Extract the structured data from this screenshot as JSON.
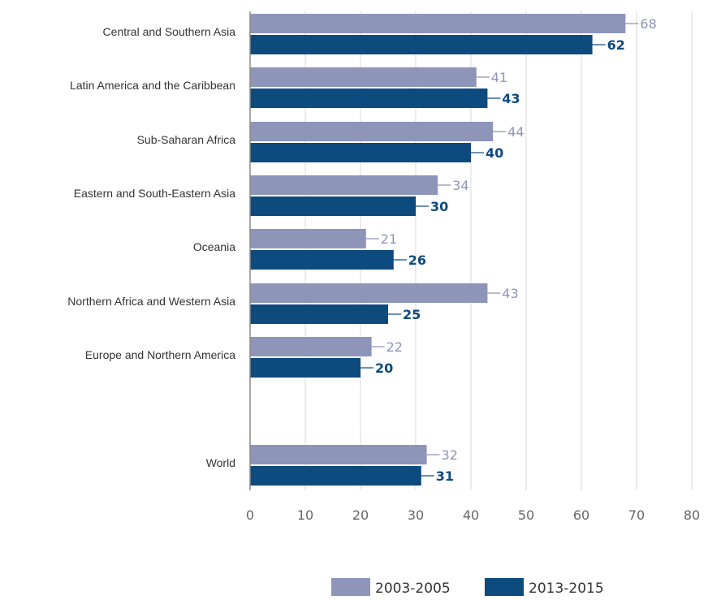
{
  "chart_data": {
    "type": "bar",
    "orientation": "horizontal",
    "categories": [
      "Central and Southern Asia",
      "Latin America and the Caribbean",
      "Sub-Saharan Africa",
      "Eastern and South-Eastern Asia",
      "Oceania",
      "Northern Africa and Western Asia",
      "Europe and Northern America",
      "World"
    ],
    "series": [
      {
        "name": "2003-2005",
        "color": "#8d95b9",
        "values": [
          68,
          41,
          44,
          34,
          21,
          43,
          22,
          32
        ]
      },
      {
        "name": "2013-2015",
        "color": "#0d4a7e",
        "values": [
          62,
          43,
          40,
          30,
          26,
          25,
          20,
          31
        ]
      }
    ],
    "xlim": [
      0,
      80
    ],
    "xticks": [
      0,
      10,
      20,
      30,
      40,
      50,
      60,
      70,
      80
    ],
    "grid": true,
    "legend_position": "bottom-right"
  }
}
